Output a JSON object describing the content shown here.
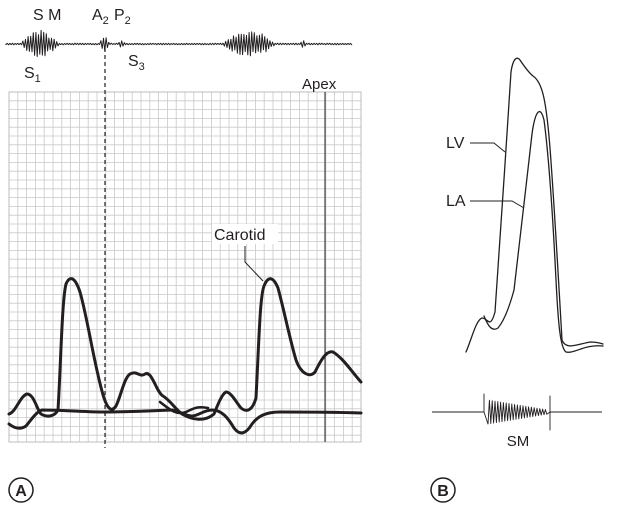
{
  "panel_a": {
    "badge": "A",
    "phono_labels": {
      "sm": "S M",
      "a2": "A",
      "a2_sub": "2",
      "p2": "P",
      "p2_sub": "2",
      "s1": "S",
      "s1_sub": "1",
      "s3": "S",
      "s3_sub": "3"
    },
    "apex_label": "Apex",
    "carotid_label": "Carotid"
  },
  "panel_b": {
    "badge": "B",
    "lv_label": "LV",
    "la_label": "LA",
    "sm_label": "SM"
  }
}
